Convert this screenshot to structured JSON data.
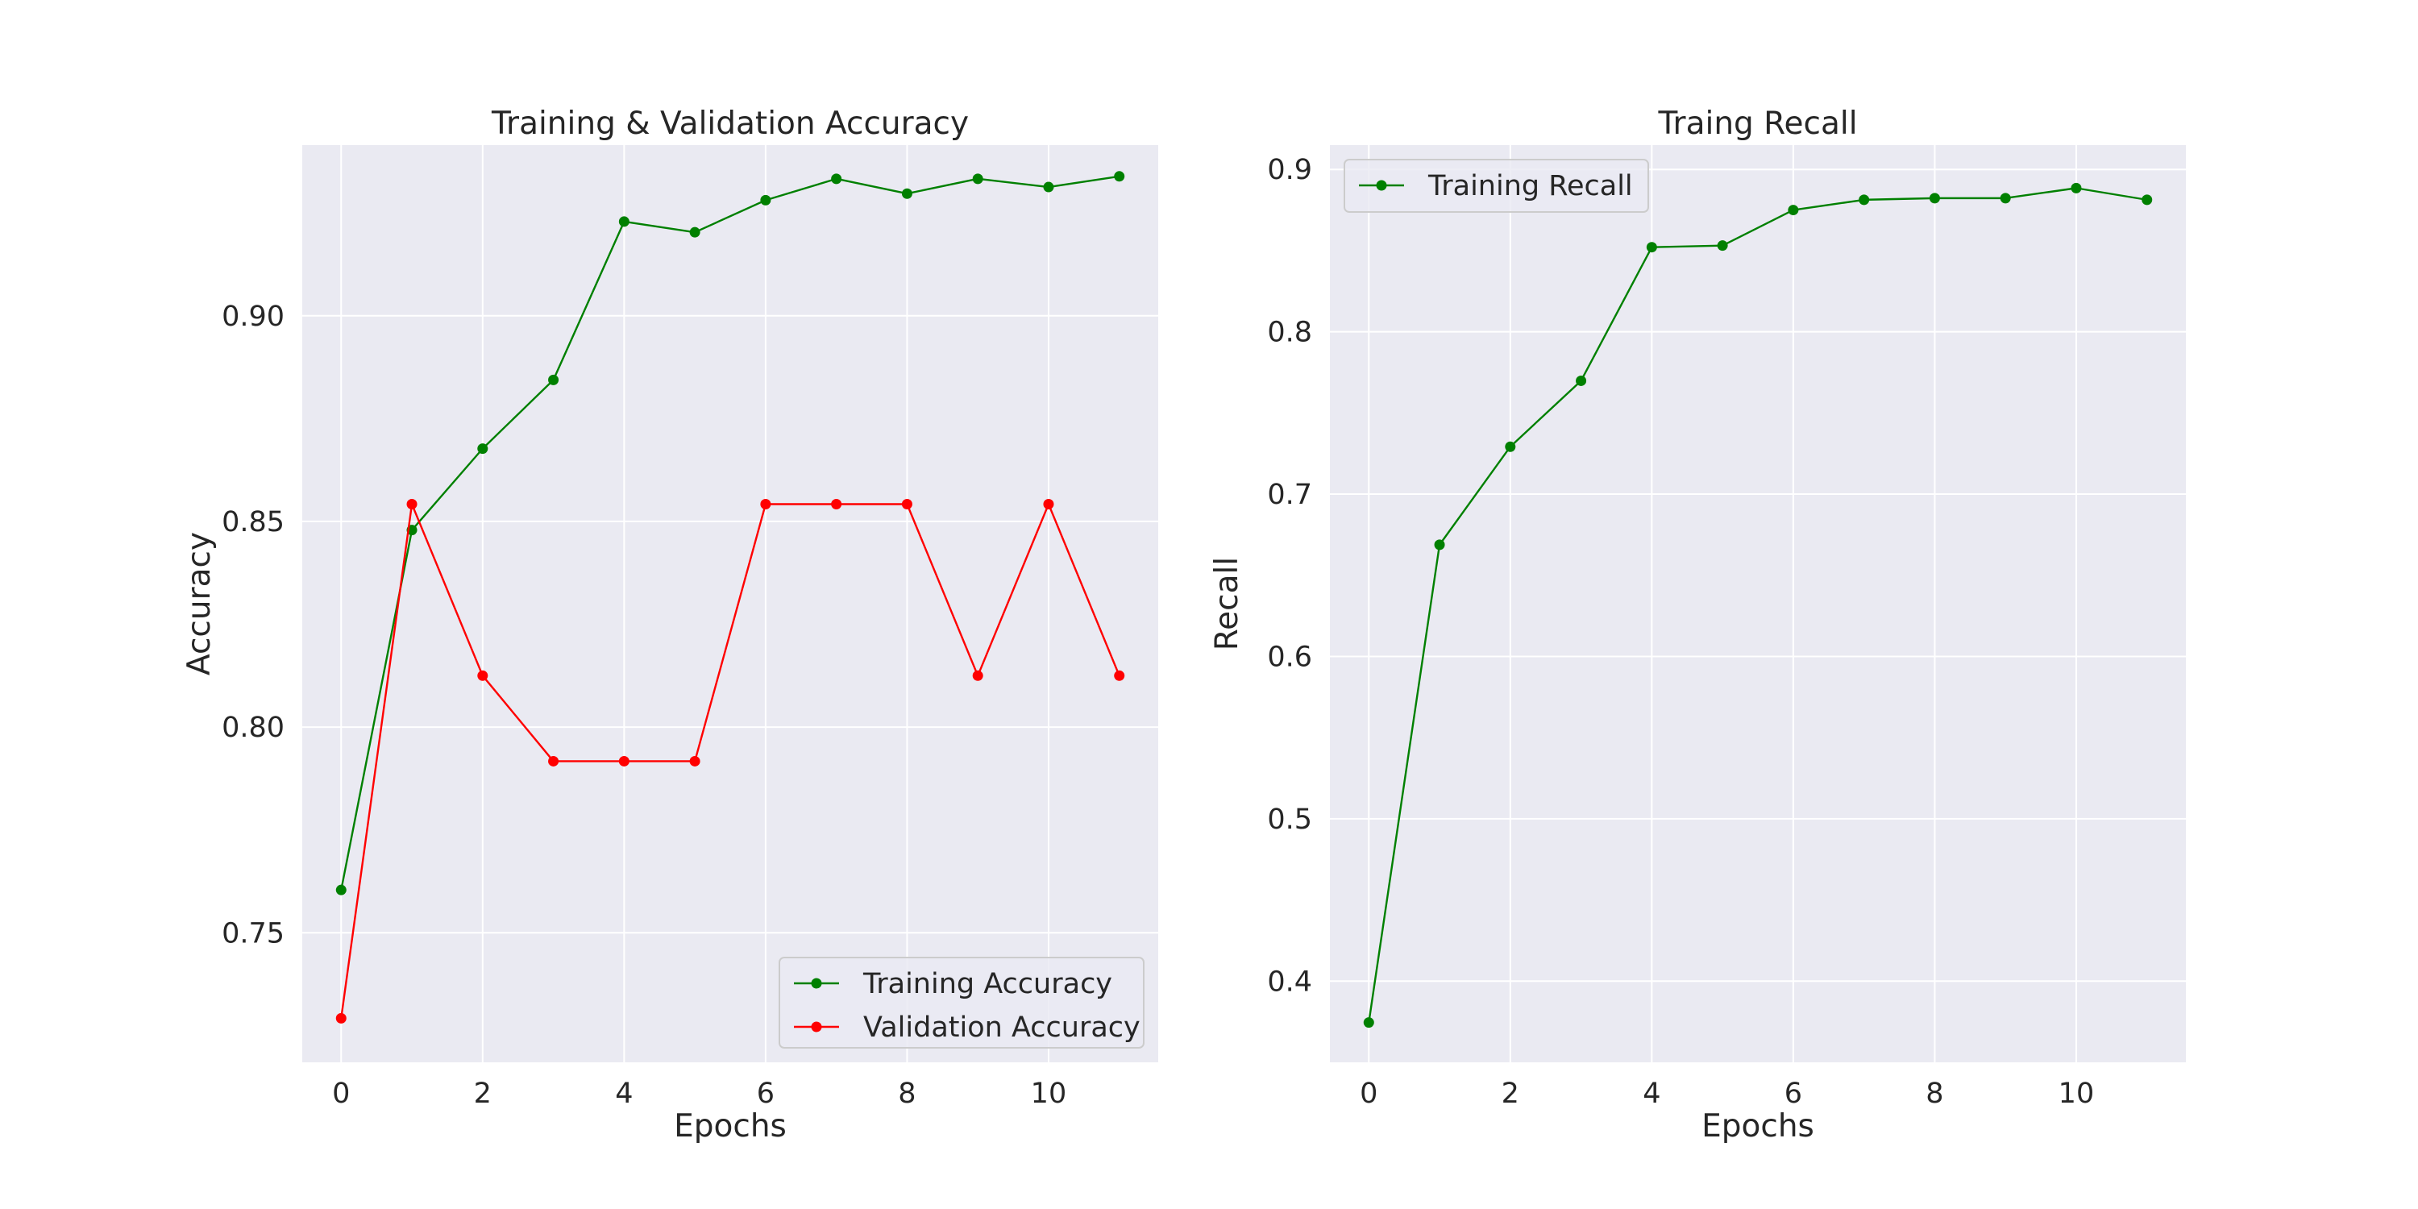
{
  "chart_data": [
    {
      "type": "line",
      "title": "Training & Validation Accuracy",
      "xlabel": "Epochs",
      "ylabel": "Accuracy",
      "xlim": [
        -0.55,
        11.55
      ],
      "ylim": [
        0.7185,
        0.9415
      ],
      "xticks": [
        0,
        2,
        4,
        6,
        8,
        10
      ],
      "yticks": [
        0.75,
        0.8,
        0.85,
        0.9
      ],
      "ytick_labels": [
        "0.75",
        "0.80",
        "0.85",
        "0.90"
      ],
      "grid": true,
      "legend": "lower-right",
      "x": [
        0,
        1,
        2,
        3,
        4,
        5,
        6,
        7,
        8,
        9,
        10,
        11
      ],
      "series": [
        {
          "name": "Training Accuracy",
          "color": "#008000",
          "values": [
            0.7604,
            0.8479,
            0.8677,
            0.8844,
            0.9229,
            0.9203,
            0.9281,
            0.9333,
            0.9297,
            0.9333,
            0.9313,
            0.9339
          ]
        },
        {
          "name": "Validation Accuracy",
          "color": "#ff0000",
          "values": [
            0.7292,
            0.8542,
            0.8125,
            0.7917,
            0.7917,
            0.7917,
            0.8542,
            0.8542,
            0.8542,
            0.8125,
            0.8542,
            0.8125
          ]
        }
      ]
    },
    {
      "type": "line",
      "title": "Traing Recall",
      "xlabel": "Epochs",
      "ylabel": "Recall",
      "xlim": [
        -0.55,
        11.55
      ],
      "ylim": [
        0.35,
        0.915
      ],
      "xticks": [
        0,
        2,
        4,
        6,
        8,
        10
      ],
      "yticks": [
        0.4,
        0.5,
        0.6,
        0.7,
        0.8,
        0.9
      ],
      "ytick_labels": [
        "0.4",
        "0.5",
        "0.6",
        "0.7",
        "0.8",
        "0.9"
      ],
      "grid": true,
      "legend": "upper-left",
      "x": [
        0,
        1,
        2,
        3,
        4,
        5,
        6,
        7,
        8,
        9,
        10,
        11
      ],
      "series": [
        {
          "name": "Training Recall",
          "color": "#008000",
          "values": [
            0.3745,
            0.6688,
            0.7292,
            0.7698,
            0.8521,
            0.8531,
            0.875,
            0.8813,
            0.8823,
            0.8823,
            0.8885,
            0.8813
          ]
        }
      ]
    }
  ]
}
